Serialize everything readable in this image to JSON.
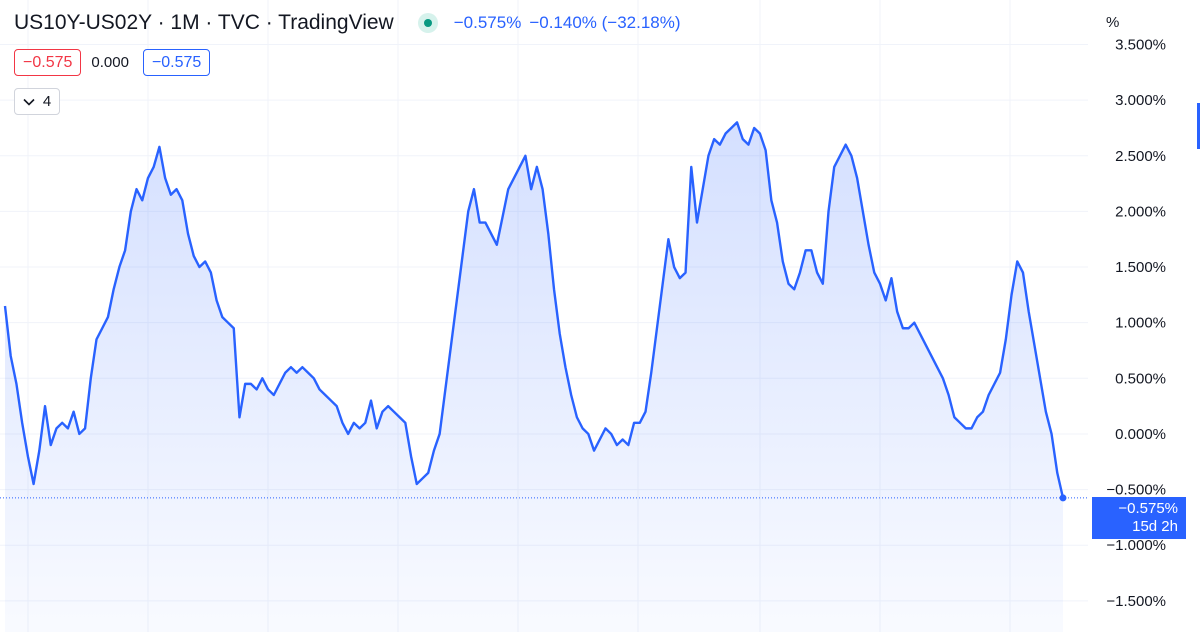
{
  "header": {
    "title": "US10Y-US02Y · 1M · TVC · TradingView",
    "last_value": "−0.575%",
    "change": "−0.140% (−32.18%)",
    "status_color": "#089981"
  },
  "ohlc": {
    "open": "−0.575",
    "mid": "0.000",
    "close": "−0.575"
  },
  "indicators_toggle": {
    "icon": "chevron-down-icon",
    "count": "4"
  },
  "price_label": {
    "value": "−0.575%",
    "countdown": "15d 2h"
  },
  "colors": {
    "line": "#2962ff",
    "fill": "#2962ff",
    "down": "#f23645",
    "grid": "#f0f3fa"
  },
  "chart_data": {
    "type": "area",
    "title": "US10Y-US02Y",
    "axis_unit": "%",
    "y_ticks": [
      "3.500%",
      "3.000%",
      "2.500%",
      "2.000%",
      "1.500%",
      "1.000%",
      "0.500%",
      "0.000%",
      "−0.500%",
      "−1.000%",
      "−1.500%"
    ],
    "ylim": [
      -1.78,
      3.9
    ],
    "grid": true,
    "series": [
      {
        "values": [
          1.15,
          0.7,
          0.45,
          0.1,
          -0.2,
          -0.45,
          -0.15,
          0.25,
          -0.1,
          0.05,
          0.1,
          0.05,
          0.2,
          0.0,
          0.05,
          0.5,
          0.85,
          0.95,
          1.05,
          1.3,
          1.5,
          1.65,
          2.0,
          2.2,
          2.1,
          2.3,
          2.4,
          2.58,
          2.3,
          2.15,
          2.2,
          2.1,
          1.8,
          1.6,
          1.5,
          1.55,
          1.45,
          1.2,
          1.05,
          1.0,
          0.95,
          0.15,
          0.45,
          0.45,
          0.4,
          0.5,
          0.4,
          0.35,
          0.45,
          0.55,
          0.6,
          0.55,
          0.6,
          0.55,
          0.5,
          0.4,
          0.35,
          0.3,
          0.25,
          0.1,
          0.0,
          0.1,
          0.05,
          0.1,
          0.3,
          0.05,
          0.2,
          0.25,
          0.2,
          0.15,
          0.1,
          -0.2,
          -0.45,
          -0.4,
          -0.35,
          -0.15,
          0.0,
          0.4,
          0.8,
          1.2,
          1.6,
          2.0,
          2.2,
          1.9,
          1.9,
          1.8,
          1.7,
          1.95,
          2.2,
          2.3,
          2.4,
          2.5,
          2.2,
          2.4,
          2.2,
          1.8,
          1.3,
          0.9,
          0.6,
          0.35,
          0.15,
          0.05,
          0.0,
          -0.15,
          -0.05,
          0.05,
          0.0,
          -0.1,
          -0.05,
          -0.1,
          0.1,
          0.1,
          0.2,
          0.55,
          0.95,
          1.35,
          1.75,
          1.5,
          1.4,
          1.45,
          2.4,
          1.9,
          2.2,
          2.5,
          2.65,
          2.6,
          2.7,
          2.75,
          2.8,
          2.65,
          2.6,
          2.75,
          2.7,
          2.55,
          2.1,
          1.9,
          1.55,
          1.35,
          1.3,
          1.45,
          1.65,
          1.65,
          1.45,
          1.35,
          2.0,
          2.4,
          2.5,
          2.6,
          2.5,
          2.3,
          2.0,
          1.7,
          1.45,
          1.35,
          1.2,
          1.4,
          1.1,
          0.95,
          0.95,
          1.0,
          0.9,
          0.8,
          0.7,
          0.6,
          0.5,
          0.35,
          0.15,
          0.1,
          0.05,
          0.05,
          0.15,
          0.2,
          0.35,
          0.45,
          0.55,
          0.85,
          1.25,
          1.55,
          1.45,
          1.1,
          0.8,
          0.5,
          0.2,
          0.0,
          -0.35,
          -0.575
        ]
      }
    ]
  }
}
